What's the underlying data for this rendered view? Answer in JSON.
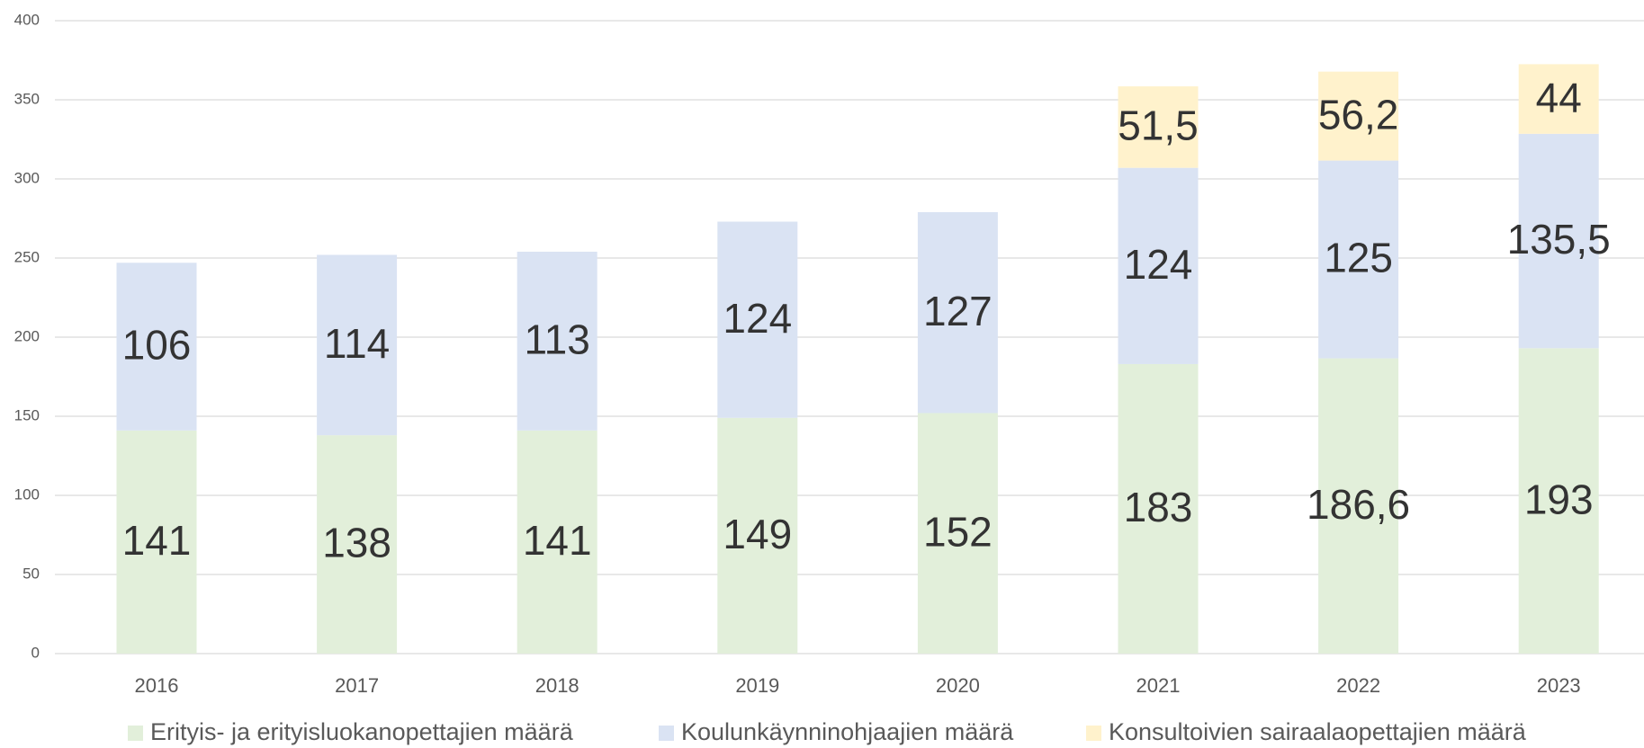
{
  "chart_data": {
    "type": "stacked_bar",
    "categories": [
      "2016",
      "2017",
      "2018",
      "2019",
      "2020",
      "2021",
      "2022",
      "2023"
    ],
    "series": [
      {
        "name": "Erityis- ja erityisluokanopettajien määrä",
        "color": "#e2efda",
        "values": [
          141,
          138,
          141,
          149,
          152,
          183,
          186.6,
          193
        ],
        "value_labels": [
          "141",
          "138",
          "141",
          "149",
          "152",
          "183",
          "186,6",
          "193"
        ]
      },
      {
        "name": "Koulunkäynninohjaajien määrä",
        "color": "#dae3f3",
        "values": [
          106,
          114,
          113,
          124,
          127,
          124,
          125,
          135.5
        ],
        "value_labels": [
          "106",
          "114",
          "113",
          "124",
          "127",
          "124",
          "125",
          "135,5"
        ]
      },
      {
        "name": "Konsultoivien sairaalaopettajien määrä",
        "color": "#fff2cc",
        "values": [
          null,
          null,
          null,
          null,
          null,
          51.5,
          56.2,
          44
        ],
        "value_labels": [
          null,
          null,
          null,
          null,
          null,
          "51,5",
          "56,2",
          "44"
        ]
      }
    ],
    "ylim": [
      0,
      400
    ],
    "yticks": [
      0,
      50,
      100,
      150,
      200,
      250,
      300,
      350,
      400
    ],
    "grid": true,
    "legend": "bottom"
  }
}
